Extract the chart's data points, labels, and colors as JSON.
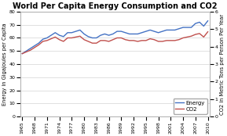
{
  "title": "World Per Capita Energy Consumption and CO2",
  "ylabel_left": "Energy in Gigajoules per Capita",
  "ylabel_right": "CO2 in Metric Tons per Person Per Year",
  "years": [
    1965,
    1966,
    1967,
    1968,
    1969,
    1970,
    1971,
    1972,
    1973,
    1974,
    1975,
    1976,
    1977,
    1978,
    1979,
    1980,
    1981,
    1982,
    1983,
    1984,
    1985,
    1986,
    1987,
    1988,
    1989,
    1990,
    1991,
    1992,
    1993,
    1994,
    1995,
    1996,
    1997,
    1998,
    1999,
    2000,
    2001,
    2002,
    2003,
    2004,
    2005,
    2006,
    2007,
    2008,
    2009,
    2010
  ],
  "energy": [
    48,
    50,
    52,
    54,
    56,
    59,
    60,
    62,
    64,
    62,
    61,
    64,
    64,
    65,
    66,
    63,
    61,
    60,
    60,
    62,
    63,
    62,
    63,
    65,
    65,
    64,
    63,
    63,
    63,
    64,
    65,
    66,
    65,
    64,
    65,
    66,
    66,
    66,
    67,
    68,
    68,
    68,
    71,
    72,
    69,
    73
  ],
  "co2": [
    3.6,
    3.7,
    3.8,
    3.95,
    4.1,
    4.3,
    4.35,
    4.45,
    4.55,
    4.4,
    4.3,
    4.5,
    4.5,
    4.55,
    4.6,
    4.4,
    4.3,
    4.2,
    4.2,
    4.35,
    4.35,
    4.3,
    4.4,
    4.5,
    4.5,
    4.4,
    4.35,
    4.35,
    4.3,
    4.35,
    4.35,
    4.45,
    4.4,
    4.3,
    4.3,
    4.35,
    4.35,
    4.35,
    4.4,
    4.5,
    4.55,
    4.6,
    4.7,
    4.75,
    4.55,
    4.85
  ],
  "energy_color": "#4472C4",
  "co2_color": "#C0504D",
  "ylim_left": [
    0,
    80
  ],
  "ylim_right": [
    0,
    6
  ],
  "yticks_left": [
    0,
    10,
    20,
    30,
    40,
    50,
    60,
    70,
    80
  ],
  "yticks_right": [
    0,
    1,
    2,
    3,
    4,
    5,
    6
  ],
  "xtick_labels": [
    "1965",
    "1968",
    "1971",
    "1974",
    "1977",
    "1980",
    "1983",
    "1986",
    "1989",
    "1992",
    "1995",
    "1998",
    "2001",
    "2004",
    "2007",
    "2010"
  ],
  "xtick_positions": [
    1965,
    1968,
    1971,
    1974,
    1977,
    1980,
    1983,
    1986,
    1989,
    1992,
    1995,
    1998,
    2001,
    2004,
    2007,
    2010
  ],
  "legend_labels": [
    "Energy",
    "CO2"
  ],
  "bg_color": "#FFFFFF",
  "grid_color": "#C8C8C8",
  "title_fontsize": 7.0,
  "axis_label_fontsize": 4.8,
  "tick_fontsize": 4.5,
  "legend_fontsize": 5.0,
  "line_width": 1.0
}
